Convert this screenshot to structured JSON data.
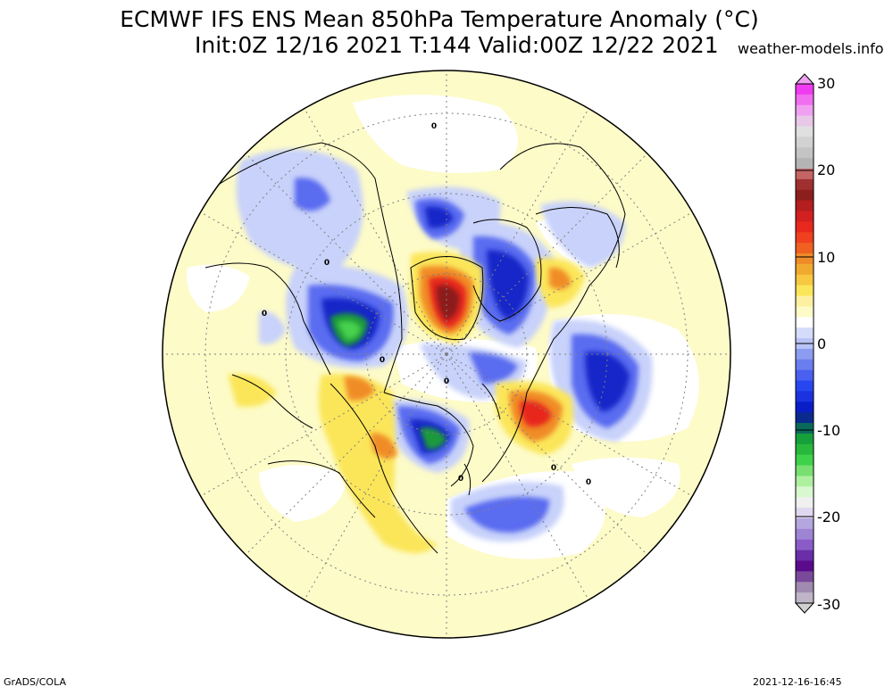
{
  "header": {
    "title_line1": "ECMWF IFS ENS Mean 850hPa Temperature Anomaly (°C)",
    "title_line2": "Init:0Z 12/16 2021  T:144 Valid:00Z 12/22 2021",
    "site": "weather-models.info"
  },
  "footer": {
    "left": "GrADS/COLA",
    "right": "2021-12-16-16:45"
  },
  "colorbar": {
    "labels": [
      "30",
      "20",
      "10",
      "0",
      "-10",
      "-20",
      "-30"
    ],
    "colors": {
      "dark_purple": "#5a0b8c",
      "purple": "#8a5cc8",
      "lavender": "#b4a6de",
      "green_dark": "#16a03a",
      "green": "#3ed24a",
      "green_light": "#aef0a0",
      "blue_dark": "#0a1ec8",
      "blue": "#2846f0",
      "blue_light": "#8c9cf0",
      "blue_pale": "#d4dcfa",
      "white": "#ffffff",
      "yellow_pale": "#fdfbc8",
      "yellow": "#fbe65a",
      "orange_light": "#f7c840",
      "orange": "#f08c28",
      "red": "#e8281e",
      "dark_red": "#8c1e1e",
      "grey": "#c8c8c8",
      "magenta": "#f03cf0"
    }
  },
  "map": {
    "projection": "north-polar-stereographic",
    "background": "#fdfbc8",
    "coastline_color": "#000000",
    "grid_color": "#808080"
  }
}
